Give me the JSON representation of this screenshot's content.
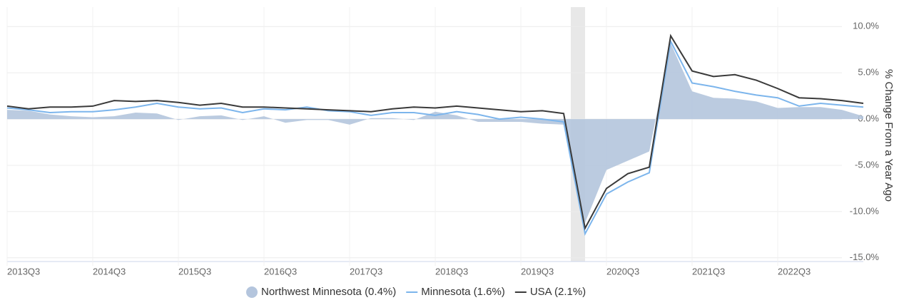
{
  "chart_data": {
    "type": "line",
    "y_label": "% Change From a Year Ago",
    "categories": [
      "2013Q3",
      null,
      null,
      null,
      "2014Q3",
      null,
      null,
      null,
      "2015Q3",
      null,
      null,
      null,
      "2016Q3",
      null,
      null,
      null,
      "2017Q3",
      null,
      null,
      null,
      "2018Q3",
      null,
      null,
      null,
      "2019Q3",
      null,
      null,
      null,
      "2020Q3",
      null,
      null,
      null,
      "2021Q3",
      null,
      null,
      null,
      "2022Q3",
      null,
      null,
      null,
      null
    ],
    "series": [
      {
        "name": "Northwest Minnesota (0.4%)",
        "color": "#b4c5dd",
        "style": "area",
        "values": [
          1.0,
          0.9,
          0.5,
          0.3,
          0.2,
          0.3,
          0.7,
          0.6,
          -0.1,
          0.3,
          0.4,
          -0.1,
          0.3,
          -0.4,
          -0.1,
          -0.1,
          -0.6,
          0.1,
          0.1,
          -0.1,
          0.8,
          0.4,
          -0.3,
          -0.3,
          -0.3,
          -0.5,
          -0.6,
          -11.2,
          -5.5,
          -4.5,
          -3.5,
          8.2,
          3.0,
          2.3,
          2.2,
          1.9,
          1.2,
          1.3,
          1.3,
          1.0,
          0.3
        ]
      },
      {
        "name": "Minnesota (1.6%)",
        "color": "#7cb5ec",
        "style": "line",
        "values": [
          1.2,
          1.0,
          0.7,
          0.8,
          0.8,
          1.0,
          1.3,
          1.7,
          1.3,
          1.1,
          1.2,
          0.7,
          1.1,
          1.0,
          1.3,
          0.9,
          0.8,
          0.4,
          0.7,
          0.7,
          0.4,
          0.8,
          0.5,
          0.0,
          0.2,
          0.0,
          -0.3,
          -12.4,
          -8.1,
          -6.8,
          -5.8,
          8.4,
          3.9,
          3.5,
          3.0,
          2.6,
          2.3,
          1.4,
          1.7,
          1.5,
          1.3
        ]
      },
      {
        "name": "USA (2.1%)",
        "color": "#3a3a3a",
        "style": "line",
        "values": [
          1.4,
          1.1,
          1.3,
          1.3,
          1.4,
          2.0,
          1.9,
          2.0,
          1.8,
          1.5,
          1.7,
          1.3,
          1.3,
          1.2,
          1.1,
          1.0,
          0.9,
          0.8,
          1.1,
          1.3,
          1.2,
          1.4,
          1.2,
          1.0,
          0.8,
          0.9,
          0.6,
          -11.8,
          -7.5,
          -5.9,
          -5.2,
          9.0,
          5.2,
          4.6,
          4.8,
          4.2,
          3.3,
          2.3,
          2.2,
          2.0,
          1.7
        ]
      }
    ],
    "ylim": [
      -15.4,
      12.1
    ],
    "yticks": [
      {
        "value": -15,
        "label": "-15.0%"
      },
      {
        "value": -10,
        "label": "-10.0%"
      },
      {
        "value": -5,
        "label": "-5.0%"
      },
      {
        "value": 0,
        "label": "0.0%"
      },
      {
        "value": 5,
        "label": "5.0%"
      },
      {
        "value": 10,
        "label": "10.0%"
      }
    ],
    "grid": true
  }
}
